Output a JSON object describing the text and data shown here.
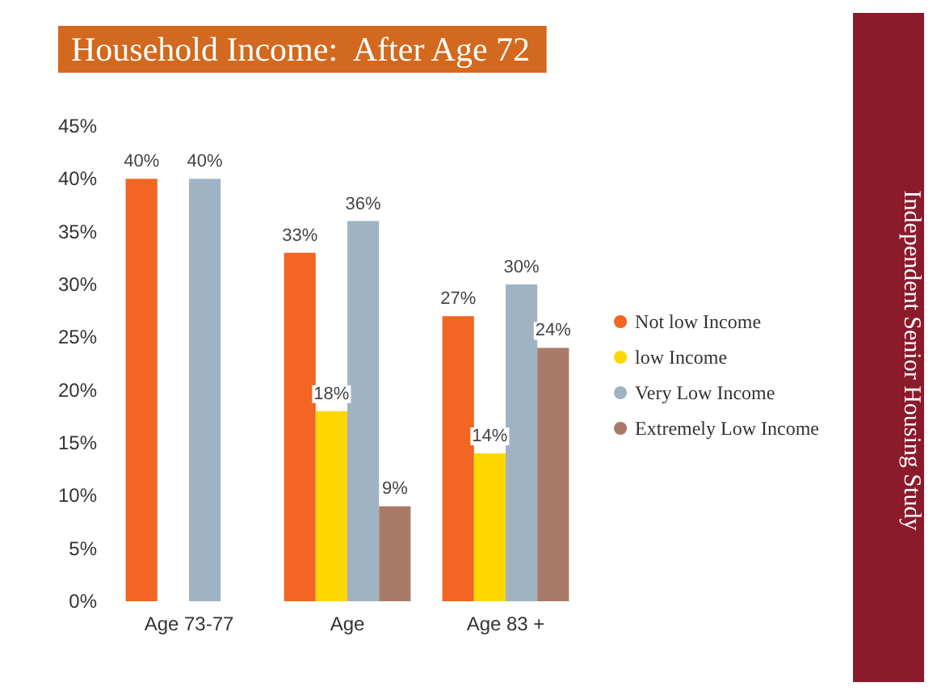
{
  "chart_data": {
    "type": "bar",
    "title": "Household Income:  After Age 72",
    "categories": [
      "Age 73-77",
      "Age",
      "Age 83 +"
    ],
    "series": [
      {
        "name": "Not low Income",
        "color": "#f26522",
        "values": [
          40,
          33,
          27
        ],
        "value_labels": [
          "40%",
          "33%",
          "27%"
        ]
      },
      {
        "name": "low Income",
        "color": "#ffd700",
        "values": [
          null,
          18,
          14
        ],
        "value_labels": [
          null,
          "18%",
          "14%"
        ]
      },
      {
        "name": "Very Low Income",
        "color": "#9fb3c3",
        "values": [
          40,
          36,
          30
        ],
        "value_labels": [
          "40%",
          "36%",
          "30%"
        ]
      },
      {
        "name": "Extremely Low Income",
        "color": "#a97a68",
        "values": [
          null,
          9,
          24
        ],
        "value_labels": [
          null,
          "9%",
          "24%"
        ]
      }
    ],
    "ylim": [
      0,
      45
    ],
    "yticks": [
      {
        "value": 0,
        "label": "0%"
      },
      {
        "value": 5,
        "label": "5%"
      },
      {
        "value": 10,
        "label": "10%"
      },
      {
        "value": 15,
        "label": "15%"
      },
      {
        "value": 20,
        "label": "20%"
      },
      {
        "value": 25,
        "label": "25%"
      },
      {
        "value": 30,
        "label": "30%"
      },
      {
        "value": 35,
        "label": "35%"
      },
      {
        "value": 40,
        "label": "40%"
      },
      {
        "value": 45,
        "label": "45%"
      }
    ],
    "legend": "right",
    "annotations": [
      "Independent Senior Housing Study"
    ]
  }
}
